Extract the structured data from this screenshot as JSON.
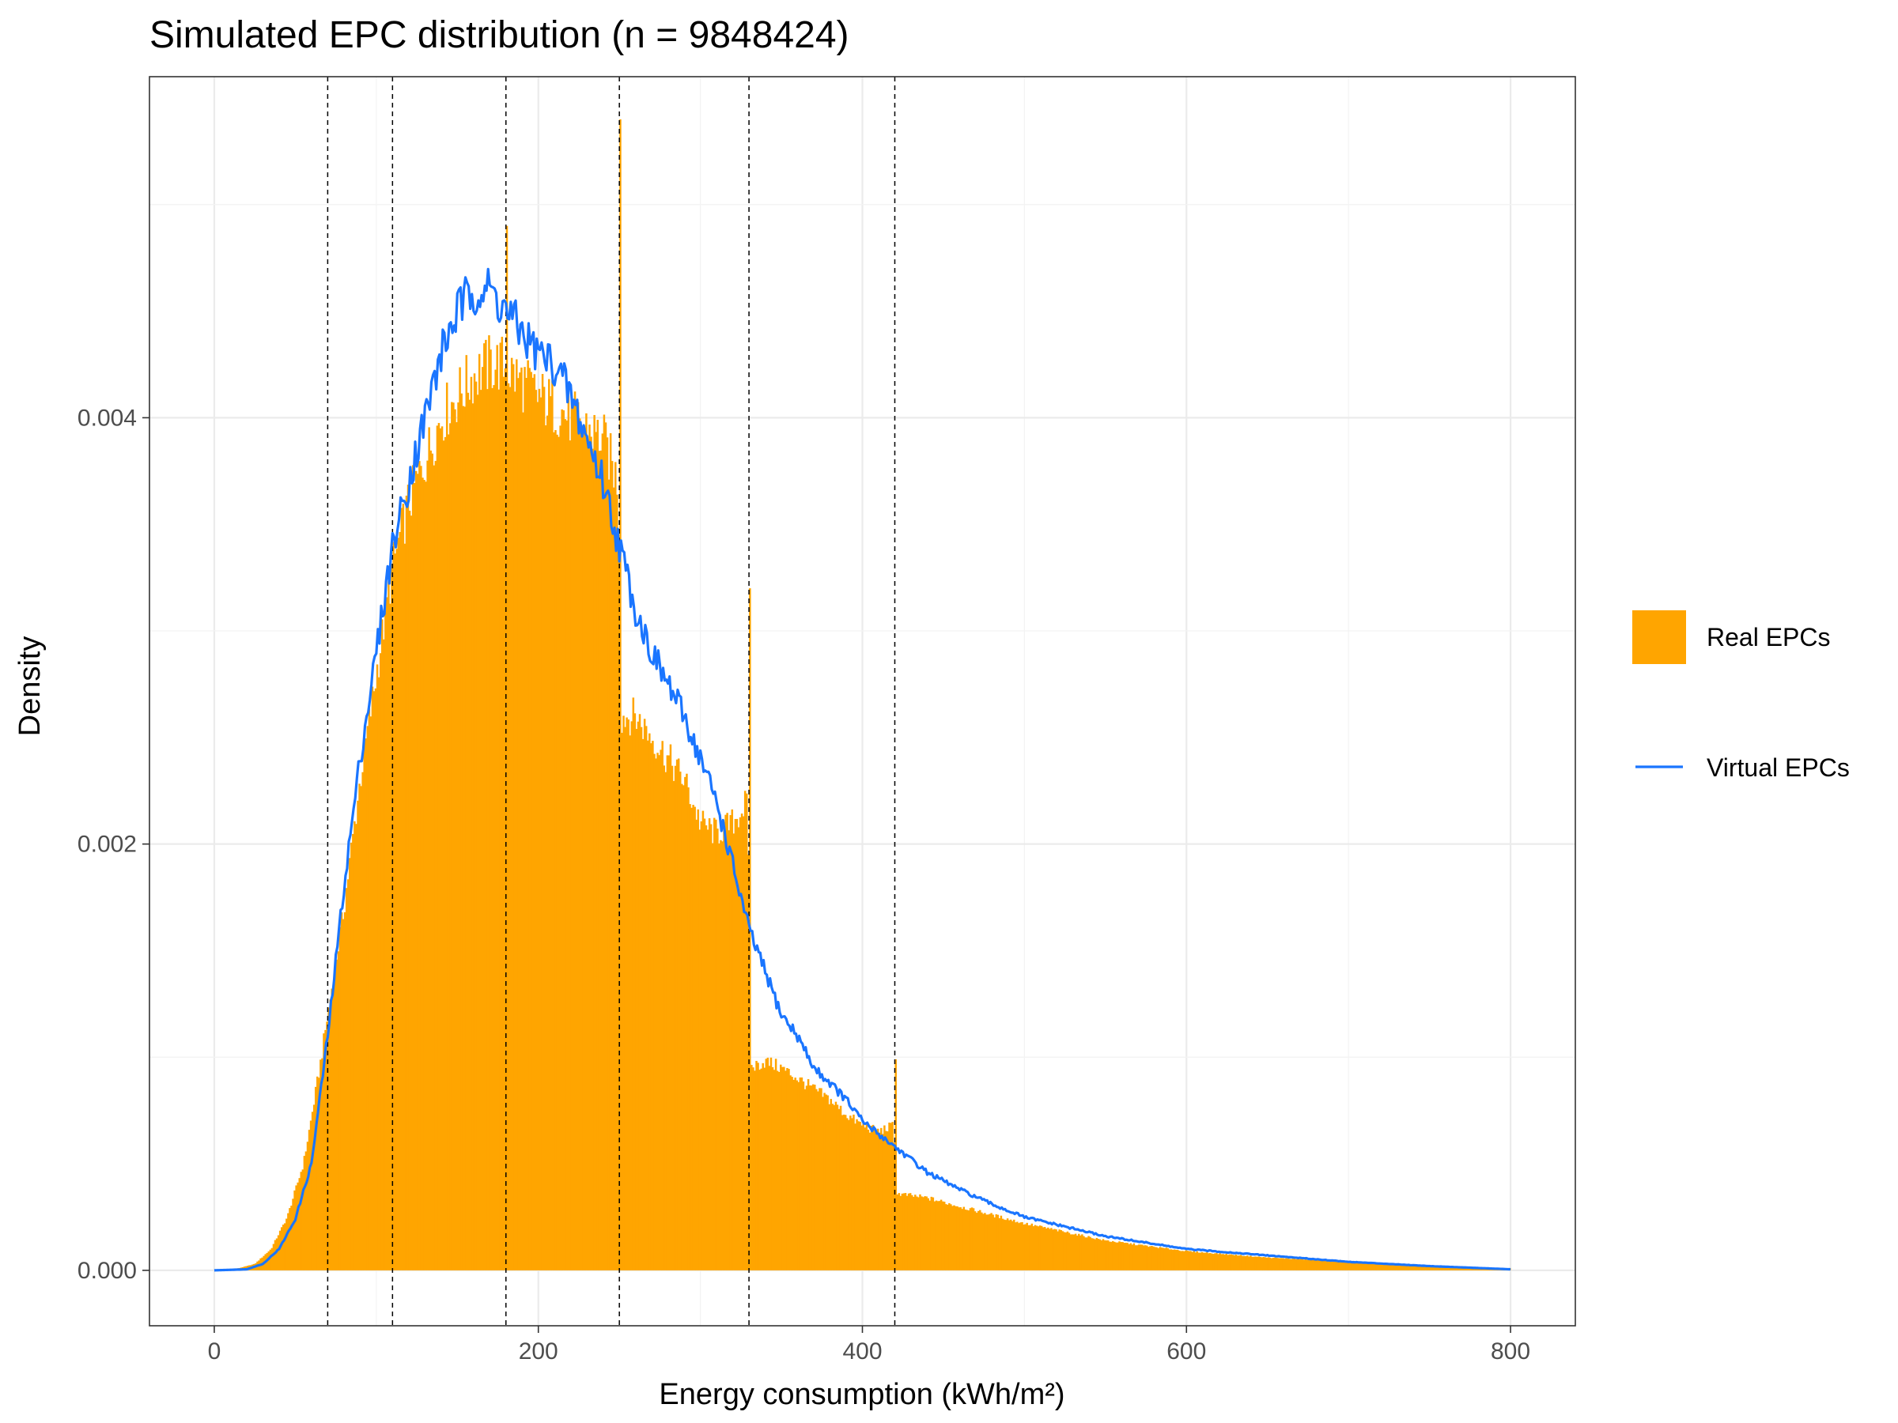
{
  "chart_data": {
    "type": "bar",
    "title": "Simulated EPC distribution (n = 9848424)",
    "xlabel": "Energy consumption (kWh/m²)",
    "ylabel": "Density",
    "xlim": [
      -40,
      840
    ],
    "ylim": [
      -0.00026,
      0.0056
    ],
    "x_ticks": [
      0,
      200,
      400,
      600,
      800
    ],
    "x_tick_labels": [
      "0",
      "200",
      "400",
      "600",
      "800"
    ],
    "y_ticks": [
      0.0,
      0.002,
      0.004
    ],
    "y_tick_labels": [
      "0.000",
      "0.002",
      "0.004"
    ],
    "grid": true,
    "legend_position": "right",
    "threshold_lines_x": [
      70,
      110,
      180,
      250,
      330,
      420
    ],
    "series": [
      {
        "name": "Real EPCs",
        "kind": "histogram",
        "color": "#FFA500",
        "bin_width": 1,
        "knots": [
          [
            0,
            0
          ],
          [
            15,
            1e-05
          ],
          [
            25,
            3e-05
          ],
          [
            35,
            0.0001
          ],
          [
            45,
            0.00025
          ],
          [
            55,
            0.0005
          ],
          [
            60,
            0.00072
          ],
          [
            65,
            0.00095
          ],
          [
            70,
            0.0012
          ],
          [
            80,
            0.0017
          ],
          [
            90,
            0.0023
          ],
          [
            100,
            0.0028
          ],
          [
            110,
            0.0033
          ],
          [
            120,
            0.0036
          ],
          [
            130,
            0.0038
          ],
          [
            140,
            0.004
          ],
          [
            150,
            0.0041
          ],
          [
            160,
            0.0042
          ],
          [
            170,
            0.00425
          ],
          [
            178,
            0.00425
          ],
          [
            185,
            0.0042
          ],
          [
            200,
            0.0041
          ],
          [
            210,
            0.00405
          ],
          [
            220,
            0.004
          ],
          [
            230,
            0.00395
          ],
          [
            240,
            0.0039
          ],
          [
            249,
            0.0037
          ],
          [
            251,
            0.0026
          ],
          [
            260,
            0.0026
          ],
          [
            270,
            0.0025
          ],
          [
            280,
            0.0024
          ],
          [
            290,
            0.0023
          ],
          [
            300,
            0.0021
          ],
          [
            310,
            0.00205
          ],
          [
            320,
            0.0021
          ],
          [
            329,
            0.0022
          ],
          [
            331,
            0.00095
          ],
          [
            340,
            0.00098
          ],
          [
            350,
            0.00095
          ],
          [
            360,
            0.0009
          ],
          [
            370,
            0.00085
          ],
          [
            380,
            0.0008
          ],
          [
            390,
            0.00073
          ],
          [
            400,
            0.00068
          ],
          [
            410,
            0.00065
          ],
          [
            419,
            0.00068
          ],
          [
            421,
            0.00036
          ],
          [
            440,
            0.00034
          ],
          [
            460,
            0.0003
          ],
          [
            480,
            0.00026
          ],
          [
            500,
            0.00022
          ],
          [
            550,
            0.00014
          ],
          [
            600,
            9e-05
          ],
          [
            650,
            6e-05
          ],
          [
            700,
            4e-05
          ],
          [
            750,
            2e-05
          ],
          [
            800,
            1e-05
          ]
        ],
        "spikes": [
          [
            180,
            0.0049
          ],
          [
            250,
            0.0054
          ],
          [
            330,
            0.0032
          ],
          [
            420,
            0.00099
          ]
        ]
      },
      {
        "name": "Virtual EPCs",
        "kind": "line",
        "color": "#1A75FF",
        "knots": [
          [
            0,
            0
          ],
          [
            20,
            5e-06
          ],
          [
            30,
            3e-05
          ],
          [
            40,
            0.0001
          ],
          [
            50,
            0.00024
          ],
          [
            60,
            0.0005
          ],
          [
            70,
            0.0011
          ],
          [
            80,
            0.0018
          ],
          [
            90,
            0.0024
          ],
          [
            100,
            0.0029
          ],
          [
            110,
            0.0034
          ],
          [
            120,
            0.0037
          ],
          [
            130,
            0.004
          ],
          [
            140,
            0.0043
          ],
          [
            150,
            0.0045
          ],
          [
            160,
            0.0046
          ],
          [
            170,
            0.0046
          ],
          [
            180,
            0.0045
          ],
          [
            190,
            0.0044
          ],
          [
            200,
            0.0043
          ],
          [
            210,
            0.00425
          ],
          [
            220,
            0.0041
          ],
          [
            230,
            0.0039
          ],
          [
            240,
            0.0037
          ],
          [
            250,
            0.0034
          ],
          [
            260,
            0.0031
          ],
          [
            270,
            0.0029
          ],
          [
            280,
            0.00275
          ],
          [
            290,
            0.0026
          ],
          [
            300,
            0.0024
          ],
          [
            310,
            0.0022
          ],
          [
            320,
            0.0019
          ],
          [
            330,
            0.0016
          ],
          [
            340,
            0.0014
          ],
          [
            350,
            0.0012
          ],
          [
            360,
            0.0011
          ],
          [
            370,
            0.00095
          ],
          [
            380,
            0.00088
          ],
          [
            390,
            0.0008
          ],
          [
            400,
            0.0007
          ],
          [
            420,
            0.00058
          ],
          [
            440,
            0.00046
          ],
          [
            460,
            0.00038
          ],
          [
            480,
            0.00031
          ],
          [
            500,
            0.00025
          ],
          [
            550,
            0.00016
          ],
          [
            600,
            0.0001
          ],
          [
            650,
            7e-05
          ],
          [
            700,
            4e-05
          ],
          [
            750,
            2e-05
          ],
          [
            800,
            5e-06
          ]
        ]
      }
    ]
  }
}
